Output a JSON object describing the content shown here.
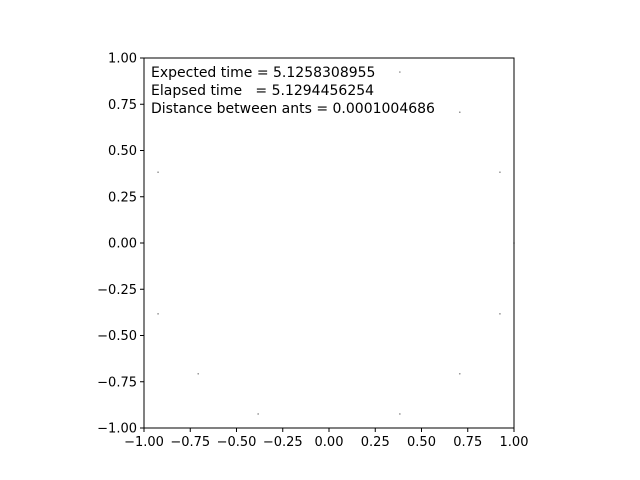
{
  "chart_data": {
    "type": "scatter",
    "title": "",
    "xlabel": "",
    "ylabel": "",
    "xlim": [
      -1.0,
      1.0
    ],
    "ylim": [
      -1.0,
      1.0
    ],
    "grid": false,
    "aspect": "equal",
    "xticks": [
      "−1.00",
      "−0.75",
      "−0.50",
      "−0.25",
      "0.00",
      "0.25",
      "0.50",
      "0.75",
      "1.00"
    ],
    "yticks": [
      "−1.00",
      "−0.75",
      "−0.50",
      "−0.25",
      "0.00",
      "0.25",
      "0.50",
      "0.75",
      "1.00"
    ],
    "xtick_values": [
      -1.0,
      -0.75,
      -0.5,
      -0.25,
      0.0,
      0.25,
      0.5,
      0.75,
      1.0
    ],
    "ytick_values": [
      -1.0,
      -0.75,
      -0.5,
      -0.25,
      0.0,
      0.25,
      0.5,
      0.75,
      1.0
    ],
    "marker_color": "#888888",
    "points": [
      {
        "x": 0.383,
        "y": 0.924
      },
      {
        "x": 0.707,
        "y": 0.707
      },
      {
        "x": 0.924,
        "y": 0.383
      },
      {
        "x": 1.0,
        "y": 0.0
      },
      {
        "x": 0.924,
        "y": -0.383
      },
      {
        "x": 0.707,
        "y": -0.707
      },
      {
        "x": 0.383,
        "y": -0.924
      },
      {
        "x": -0.383,
        "y": -0.924
      },
      {
        "x": -0.707,
        "y": -0.707
      },
      {
        "x": -0.924,
        "y": -0.383
      },
      {
        "x": -0.924,
        "y": 0.383
      }
    ],
    "annotations": {
      "expected_time": "Expected time = 5.1258308955",
      "elapsed_time": "Elapsed time   = 5.1294456254",
      "distance": "Distance between ants = 0.0001004686"
    }
  }
}
